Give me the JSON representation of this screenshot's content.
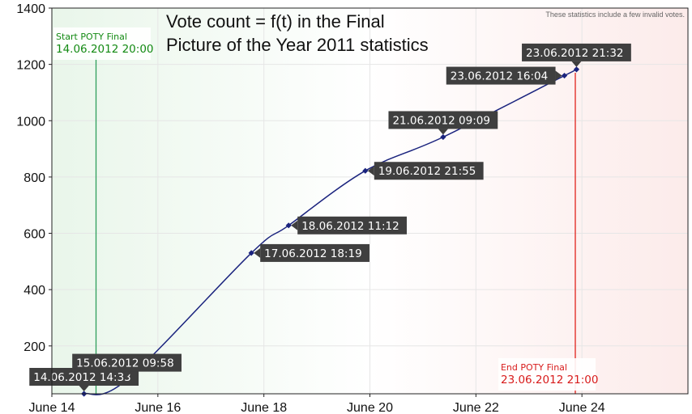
{
  "chart_data": {
    "type": "line",
    "title_lines": [
      "Vote count = f(t) in the Final",
      "Picture of the Year 2011 statistics"
    ],
    "note": "These statistics include a few invalid votes.",
    "xlabel": "",
    "ylabel": "",
    "ylim": [
      30,
      1400
    ],
    "y_ticks": [
      200,
      400,
      600,
      800,
      1000,
      1200,
      1400
    ],
    "xlim": [
      "2012-06-14T00:00",
      "2012-06-26T00:00"
    ],
    "x_ticks": [
      {
        "date": "2012-06-14T00:00",
        "label": "June 14"
      },
      {
        "date": "2012-06-16T00:00",
        "label": "June 16"
      },
      {
        "date": "2012-06-18T00:00",
        "label": "June 18"
      },
      {
        "date": "2012-06-20T00:00",
        "label": "June 20"
      },
      {
        "date": "2012-06-22T00:00",
        "label": "June 22"
      },
      {
        "date": "2012-06-24T00:00",
        "label": "June 24"
      }
    ],
    "grid": true,
    "series": [
      {
        "color": "#1a237e",
        "points": [
          {
            "x": "2012-06-14T14:33",
            "y": 30,
            "label": "14.06.2012 14:33"
          },
          {
            "x": "2012-06-15T09:58",
            "y": 80,
            "label": "15.06.2012 09:58"
          },
          {
            "x": "2012-06-17T18:19",
            "y": 530,
            "label": "17.06.2012 18:19"
          },
          {
            "x": "2012-06-18T11:12",
            "y": 628,
            "label": "18.06.2012 11:12"
          },
          {
            "x": "2012-06-19T21:55",
            "y": 822,
            "label": "19.06.2012 21:55"
          },
          {
            "x": "2012-06-21T09:09",
            "y": 942,
            "label": "21.06.2012 09:09"
          },
          {
            "x": "2012-06-23T16:04",
            "y": 1160,
            "label": "23.06.2012 16:04"
          },
          {
            "x": "2012-06-23T21:32",
            "y": 1182,
            "label": "23.06.2012 21:32"
          }
        ]
      }
    ],
    "markers": [
      {
        "x": "2012-06-14T20:00",
        "title": "Start POTY Final",
        "date": "14.06.2012 20:00",
        "color": "#2e9e5b",
        "text_color": "#138a13"
      },
      {
        "x": "2012-06-23T21:00",
        "title": "End POTY Final",
        "date": "23.06.2012 21:00",
        "color": "#e0221c",
        "text_color": "#d81b1b"
      }
    ],
    "colors": {
      "start_zone": "#e9f6ea",
      "end_zone": "#fcebea",
      "callout_bg": "#3f3f3f",
      "callout_text": "#ffffff",
      "grid": "#e6e6e6"
    }
  }
}
